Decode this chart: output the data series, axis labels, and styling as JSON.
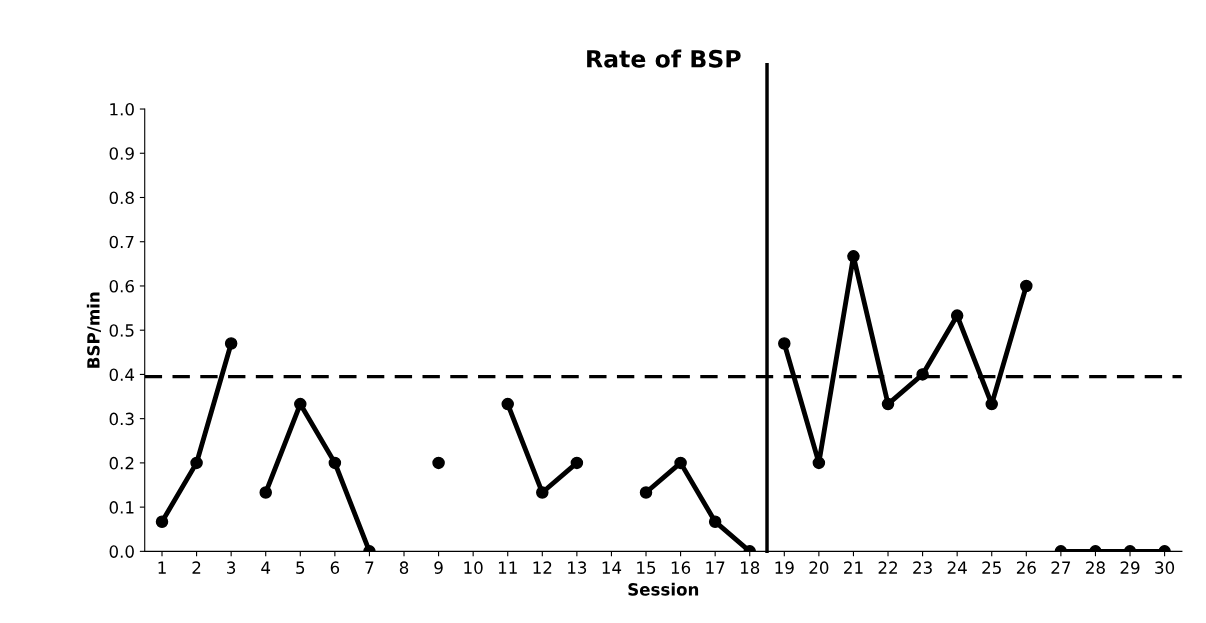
{
  "chart_data": {
    "type": "line",
    "title": "Rate of BSP",
    "xlabel": "Session",
    "ylabel": "BSP/min",
    "series": [
      {
        "color": "#000000",
        "x": [
          1,
          2,
          3
        ],
        "values": [
          0.067,
          0.2,
          0.47
        ]
      },
      {
        "color": "#000000",
        "x": [
          4,
          5,
          6,
          7
        ],
        "values": [
          0.133,
          0.333,
          0.2,
          0.0
        ]
      },
      {
        "color": "#000000",
        "x": [
          9
        ],
        "values": [
          0.2
        ]
      },
      {
        "color": "#000000",
        "x": [
          11,
          12,
          13
        ],
        "values": [
          0.333,
          0.133,
          0.2
        ]
      },
      {
        "color": "#000000",
        "x": [
          15,
          16,
          17,
          18
        ],
        "values": [
          0.133,
          0.2,
          0.067,
          0.0
        ]
      },
      {
        "color": "#000000",
        "x": [
          19,
          20,
          21,
          22,
          23,
          24,
          25,
          26
        ],
        "values": [
          0.47,
          0.2,
          0.667,
          0.333,
          0.4,
          0.533,
          0.333,
          0.6
        ]
      },
      {
        "color": "#000000",
        "x": [
          27,
          28,
          29,
          30
        ],
        "values": [
          0.0,
          0.0,
          0.0,
          0.0
        ]
      }
    ],
    "xlim": [
      0.5,
      30.5
    ],
    "xticks": [
      1,
      2,
      3,
      4,
      5,
      6,
      7,
      8,
      9,
      10,
      11,
      12,
      13,
      14,
      15,
      16,
      17,
      18,
      19,
      20,
      21,
      22,
      23,
      24,
      25,
      26,
      27,
      28,
      29,
      30
    ],
    "ylim": [
      0,
      1
    ],
    "yticks": [
      {
        "value": 0,
        "label": "0.0"
      },
      0.1,
      0.2,
      0.3,
      0.4,
      0.5,
      0.6,
      0.7,
      0.8,
      0.9,
      {
        "value": 1,
        "label": "1.0"
      }
    ],
    "ref_lines": [
      {
        "axis": "x",
        "value": 18.5,
        "color": "#000000",
        "line_style": "solid"
      },
      {
        "axis": "y",
        "value": 0.395,
        "color": "#000000",
        "line_style": "dashed"
      }
    ],
    "marker": "circle",
    "line_style": "solid",
    "grid": false,
    "legend": false
  }
}
